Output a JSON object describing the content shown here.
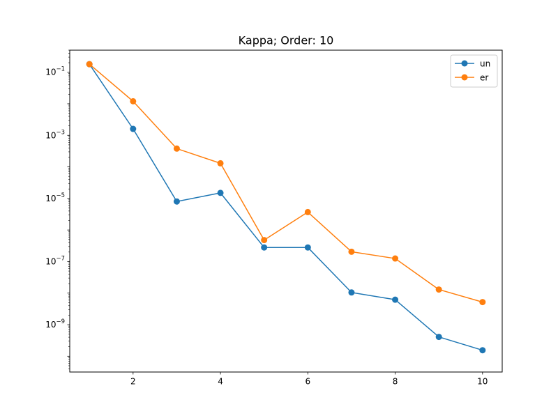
{
  "chart_data": {
    "type": "line",
    "title": "Kappa; Order: 10",
    "xlabel": "",
    "ylabel": "",
    "yscale": "log",
    "xlim": [
      0.55,
      10.45
    ],
    "ylim": [
      3.16e-11,
      0.5
    ],
    "x_ticks": [
      2,
      4,
      6,
      8,
      10
    ],
    "x_tick_labels": [
      "2",
      "4",
      "6",
      "8",
      "10"
    ],
    "y_ticks": [
      1e-09,
      1e-07,
      1e-05,
      0.001,
      0.1
    ],
    "y_tick_labels": [
      {
        "base": "10",
        "exp": "−9"
      },
      {
        "base": "10",
        "exp": "−7"
      },
      {
        "base": "10",
        "exp": "−5"
      },
      {
        "base": "10",
        "exp": "−3"
      },
      {
        "base": "10",
        "exp": "−1"
      }
    ],
    "legend_position": "top-right",
    "grid": false,
    "x": [
      1,
      2,
      3,
      4,
      5,
      6,
      7,
      8,
      9,
      10
    ],
    "series": [
      {
        "name": "un",
        "color": "#1f77b4",
        "values": [
          0.18,
          0.0016,
          8e-06,
          1.5e-05,
          2.8e-07,
          2.8e-07,
          1.05e-08,
          6.2e-09,
          4.1e-10,
          1.55e-10
        ]
      },
      {
        "name": "er",
        "color": "#ff7f0e",
        "values": [
          0.18,
          0.012,
          0.00038,
          0.00013,
          4.8e-07,
          3.7e-06,
          2.05e-07,
          1.25e-07,
          1.3e-08,
          5.2e-09
        ]
      }
    ]
  }
}
